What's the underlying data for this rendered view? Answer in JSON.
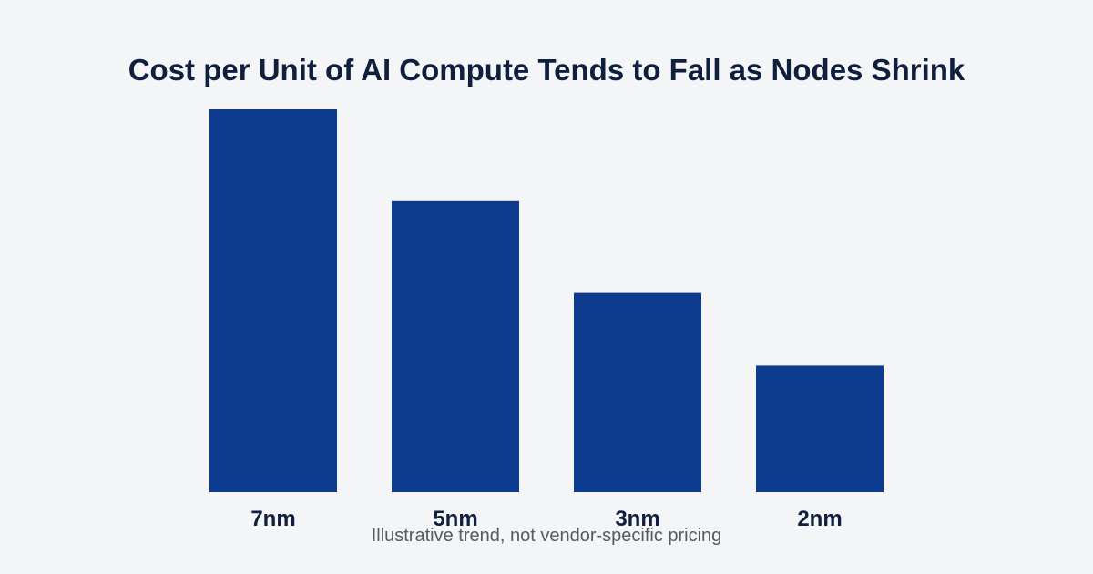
{
  "chart_data": {
    "type": "bar",
    "title": "Cost per Unit of AI Compute Tends to Fall as Nodes Shrink",
    "categories": [
      "7nm",
      "5nm",
      "3nm",
      "2nm"
    ],
    "values": [
      100,
      76,
      52,
      33
    ],
    "xlabel": "",
    "ylabel": "",
    "ylim": [
      0,
      100
    ],
    "grid": false,
    "legend": "none",
    "bar_color": "#0d3b8e",
    "caption": "Illustrative trend, not vendor-specific pricing"
  }
}
